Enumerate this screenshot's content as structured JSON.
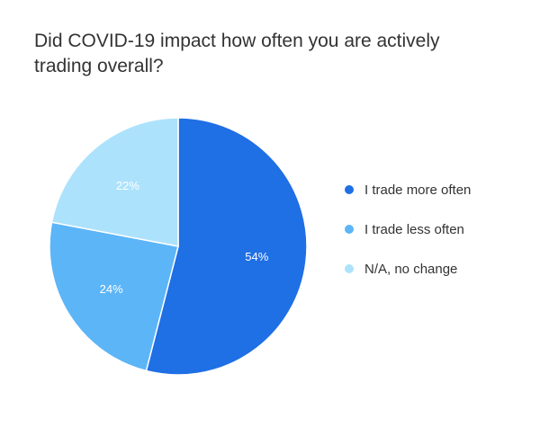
{
  "chart_data": {
    "type": "pie",
    "title": "Did COVID-19 impact how often you are actively trading overall?",
    "categories": [
      "I trade more often",
      "I trade less often",
      "N/A, no change"
    ],
    "values": [
      54,
      24,
      22
    ],
    "value_labels": [
      "54%",
      "24%",
      "22%"
    ],
    "colors": [
      "#1F6FE5",
      "#5CB5F7",
      "#ADE2FC"
    ],
    "legend_position": "right"
  }
}
